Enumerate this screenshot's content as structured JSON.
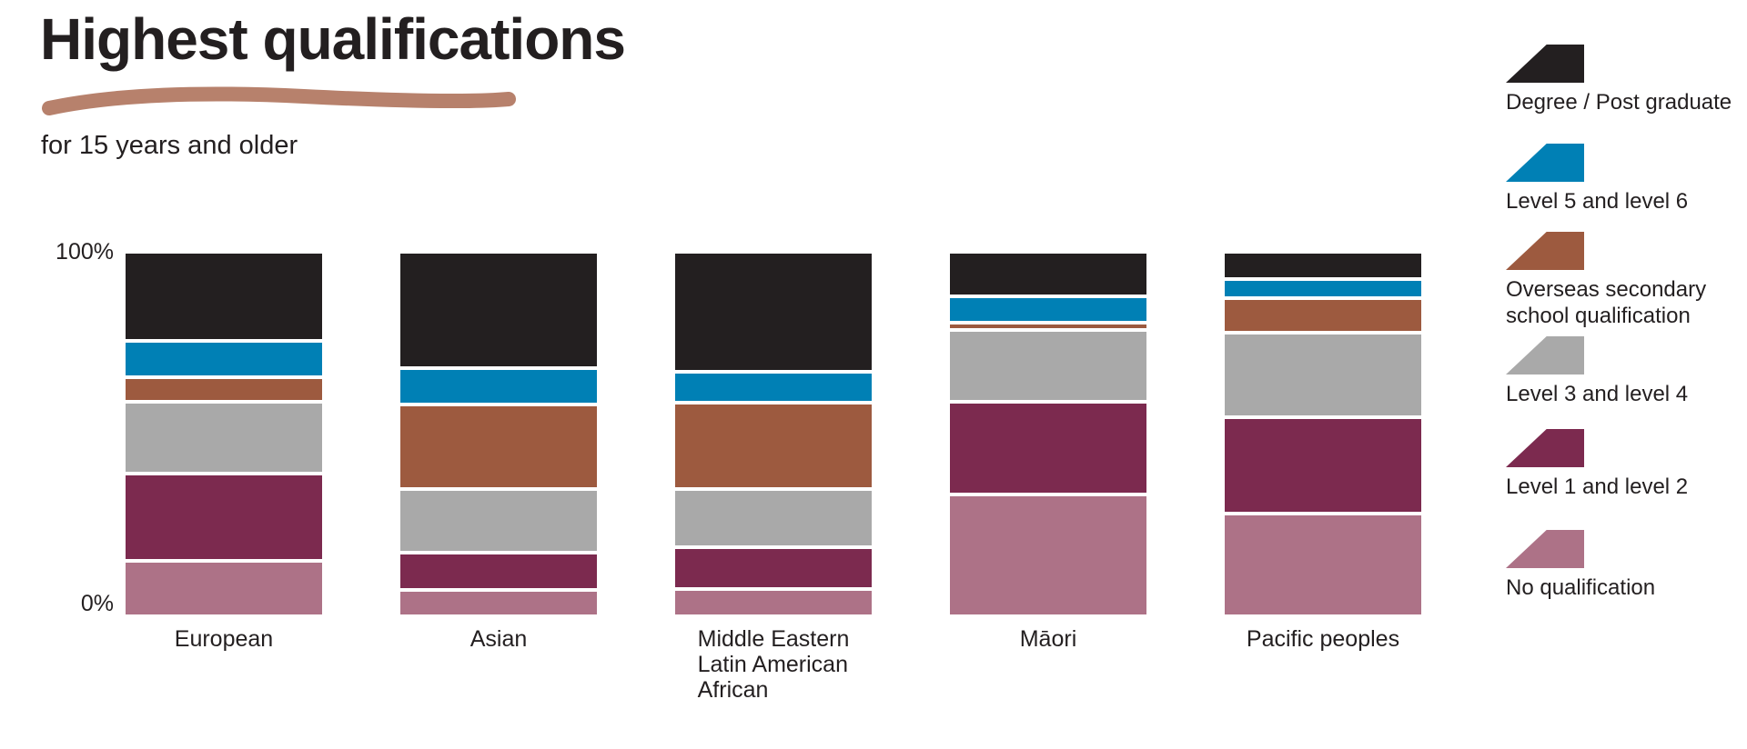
{
  "title": "Highest qualifications",
  "subtitle": "for 15 years and older",
  "axis": {
    "top_label": "100%",
    "bottom_label": "0%"
  },
  "decorations": {
    "title_underline_color": "#b7816c"
  },
  "chart_data": {
    "type": "bar",
    "stacked": true,
    "orientation": "vertical",
    "unit": "percent",
    "ylim": [
      0,
      100
    ],
    "y_axis_labels": [
      "0%",
      "100%"
    ],
    "grid": false,
    "legend_position": "right",
    "categories": [
      "European",
      "Asian",
      "Middle Eastern\nLatin American\nAfrican",
      "Māori",
      "Pacific peoples"
    ],
    "series": [
      {
        "name": "Degree / Post graduate",
        "color": "#231f20",
        "values": [
          25,
          33,
          34,
          12,
          7
        ]
      },
      {
        "name": "Level 5 and level 6",
        "color": "#0080b5",
        "values": [
          9.5,
          9.5,
          8,
          6.5,
          4.5
        ]
      },
      {
        "name": "Overseas secondary school qualification",
        "color": "#9d5a3f",
        "values": [
          6,
          23.5,
          24,
          1,
          9
        ]
      },
      {
        "name": "Level 3 and level 4",
        "color": "#a9a9a9",
        "values": [
          20,
          17.5,
          16,
          20,
          23.5
        ]
      },
      {
        "name": "Level 1 and level 2",
        "color": "#7c2a4f",
        "values": [
          24.5,
          10,
          11,
          26,
          27
        ]
      },
      {
        "name": "No qualification",
        "color": "#ad7287",
        "values": [
          15,
          6.5,
          7,
          34.5,
          29
        ]
      }
    ]
  }
}
